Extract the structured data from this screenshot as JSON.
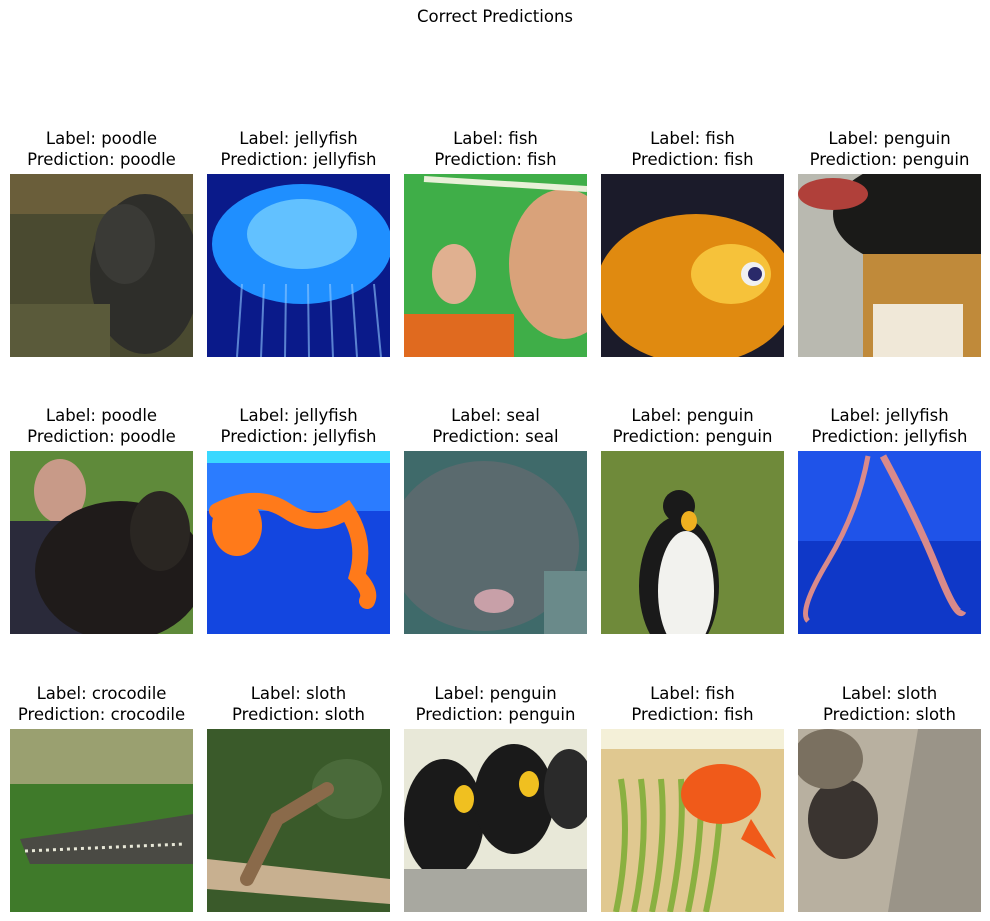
{
  "figure": {
    "title": "Correct Predictions"
  },
  "samples": [
    {
      "label": "Label: poodle",
      "prediction": "Prediction: poodle",
      "image": "poodle-photo",
      "colors": [
        "#4a4a30",
        "#2e2e2a",
        "#5a5a3a"
      ]
    },
    {
      "label": "Label: jellyfish",
      "prediction": "Prediction: jellyfish",
      "image": "jellyfish-photo",
      "colors": [
        "#0a1a8a",
        "#1f8fff",
        "#7fd6ff"
      ]
    },
    {
      "label": "Label: fish",
      "prediction": "Prediction: fish",
      "image": "child-fish-photo",
      "colors": [
        "#3fae48",
        "#d9a27a",
        "#e06a1f"
      ]
    },
    {
      "label": "Label: fish",
      "prediction": "Prediction: fish",
      "image": "goldfish-photo",
      "colors": [
        "#1b1b2a",
        "#e08a10",
        "#f6c23a"
      ]
    },
    {
      "label": "Label: penguin",
      "prediction": "Prediction: penguin",
      "image": "penguin-closeup",
      "colors": [
        "#b9b9b0",
        "#1a1a18",
        "#c08a3a"
      ]
    },
    {
      "label": "Label: poodle",
      "prediction": "Prediction: poodle",
      "image": "man-poodle-photo",
      "colors": [
        "#5f8a3a",
        "#1f1b1a",
        "#c89a88"
      ]
    },
    {
      "label": "Label: jellyfish",
      "prediction": "Prediction: jellyfish",
      "image": "orange-jellyfish",
      "colors": [
        "#1346e0",
        "#2b7cff",
        "#ff7a1a"
      ]
    },
    {
      "label": "Label: seal",
      "prediction": "Prediction: seal",
      "image": "seal-photo",
      "colors": [
        "#5a6a6e",
        "#3f6a6a",
        "#8a8f99"
      ]
    },
    {
      "label": "Label: penguin",
      "prediction": "Prediction: penguin",
      "image": "king-penguin",
      "colors": [
        "#6f8a3a",
        "#f2f2ee",
        "#1a1a1a"
      ]
    },
    {
      "label": "Label: jellyfish",
      "prediction": "Prediction: jellyfish",
      "image": "pink-jellyfish",
      "colors": [
        "#0f38c8",
        "#2a66ff",
        "#d98a8a"
      ]
    },
    {
      "label": "Label: crocodile",
      "prediction": "Prediction: crocodile",
      "image": "crocodile-photo",
      "colors": [
        "#9aa070",
        "#3f7a2a",
        "#4a4a44"
      ]
    },
    {
      "label": "Label: sloth",
      "prediction": "Prediction: sloth",
      "image": "sloth-photo",
      "colors": [
        "#3a5a2a",
        "#8a6a4a",
        "#c8b090"
      ]
    },
    {
      "label": "Label: penguin",
      "prediction": "Prediction: penguin",
      "image": "penguins-group",
      "colors": [
        "#e8e8d8",
        "#1a1a1a",
        "#f0c020"
      ]
    },
    {
      "label": "Label: fish",
      "prediction": "Prediction: fish",
      "image": "goldfish-tank",
      "colors": [
        "#f4f0d8",
        "#8ab040",
        "#f05a1a"
      ]
    },
    {
      "label": "Label: sloth",
      "prediction": "Prediction: sloth",
      "image": "sloth-tree",
      "colors": [
        "#b8b0a0",
        "#3a3430",
        "#7a7060"
      ]
    }
  ]
}
